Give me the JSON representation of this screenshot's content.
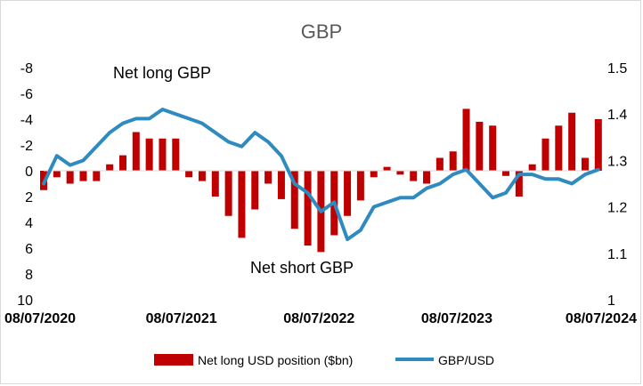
{
  "chart_data": {
    "type": "bar+line",
    "title": "GBP",
    "x_tick_labels": [
      "08/07/2020",
      "08/07/2021",
      "08/07/2022",
      "08/07/2023",
      "08/07/2024"
    ],
    "left_axis": {
      "label": "",
      "reversed": true,
      "range": [
        -8,
        10
      ],
      "ticks": [
        "-8",
        "-6",
        "-4",
        "-2",
        "0",
        "2",
        "4",
        "6",
        "8",
        "10"
      ]
    },
    "right_axis": {
      "label": "",
      "range": [
        1,
        1.5
      ],
      "ticks": [
        "1.5",
        "1.4",
        "1.3",
        "1.2",
        "1.1",
        "1"
      ]
    },
    "annotations": [
      "Net long GBP",
      "Net short GBP"
    ],
    "series": [
      {
        "name": "Net long USD position ($bn)",
        "kind": "bar",
        "axis": "left",
        "color": "#c00000",
        "x": [
          "2020-07-08",
          "2020-08-12",
          "2020-09-16",
          "2020-10-21",
          "2020-11-25",
          "2020-12-30",
          "2021-02-03",
          "2021-03-10",
          "2021-04-14",
          "2021-05-19",
          "2021-06-23",
          "2021-07-28",
          "2021-09-01",
          "2021-10-06",
          "2021-11-10",
          "2021-12-15",
          "2022-01-19",
          "2022-02-23",
          "2022-03-30",
          "2022-05-04",
          "2022-06-08",
          "2022-07-13",
          "2022-08-17",
          "2022-09-21",
          "2022-10-26",
          "2022-11-30",
          "2023-01-04",
          "2023-02-08",
          "2023-03-15",
          "2023-04-19",
          "2023-05-24",
          "2023-06-28",
          "2023-08-02",
          "2023-09-06",
          "2023-10-11",
          "2023-11-15",
          "2023-12-20",
          "2024-01-24",
          "2024-02-28",
          "2024-04-03",
          "2024-05-08",
          "2024-06-12",
          "2024-07-17"
        ],
        "values": [
          1.5,
          0.5,
          1.0,
          0.8,
          0.8,
          -0.5,
          -1.2,
          -3.0,
          -2.5,
          -2.5,
          -2.5,
          0.5,
          0.8,
          2.0,
          3.5,
          5.2,
          3.0,
          1.0,
          2.2,
          4.5,
          5.8,
          6.3,
          5.0,
          3.5,
          2.3,
          0.5,
          -0.3,
          0.3,
          0.8,
          1.0,
          -1.0,
          -1.5,
          -4.8,
          -3.8,
          -3.5,
          0.4,
          2.0,
          -0.5,
          -2.5,
          -3.5,
          -4.5,
          -1.0,
          -4.0
        ]
      },
      {
        "name": "GBP/USD",
        "kind": "line",
        "axis": "right",
        "color": "#2e8bc0",
        "x": [
          "2020-07-08",
          "2020-08-12",
          "2020-09-16",
          "2020-10-21",
          "2020-11-25",
          "2020-12-30",
          "2021-02-03",
          "2021-03-10",
          "2021-04-14",
          "2021-05-19",
          "2021-06-23",
          "2021-07-28",
          "2021-09-01",
          "2021-10-06",
          "2021-11-10",
          "2021-12-15",
          "2022-01-19",
          "2022-02-23",
          "2022-03-30",
          "2022-05-04",
          "2022-06-08",
          "2022-07-13",
          "2022-08-17",
          "2022-09-21",
          "2022-10-26",
          "2022-11-30",
          "2023-01-04",
          "2023-02-08",
          "2023-03-15",
          "2023-04-19",
          "2023-05-24",
          "2023-06-28",
          "2023-08-02",
          "2023-09-06",
          "2023-10-11",
          "2023-11-15",
          "2023-12-20",
          "2024-01-24",
          "2024-02-28",
          "2024-04-03",
          "2024-05-08",
          "2024-06-12",
          "2024-07-17"
        ],
        "values": [
          1.25,
          1.31,
          1.29,
          1.3,
          1.33,
          1.36,
          1.38,
          1.39,
          1.39,
          1.41,
          1.4,
          1.39,
          1.38,
          1.36,
          1.34,
          1.33,
          1.36,
          1.34,
          1.31,
          1.25,
          1.23,
          1.19,
          1.21,
          1.13,
          1.15,
          1.2,
          1.21,
          1.22,
          1.22,
          1.24,
          1.25,
          1.27,
          1.28,
          1.25,
          1.22,
          1.23,
          1.27,
          1.27,
          1.26,
          1.26,
          1.25,
          1.27,
          1.28
        ]
      }
    ]
  }
}
